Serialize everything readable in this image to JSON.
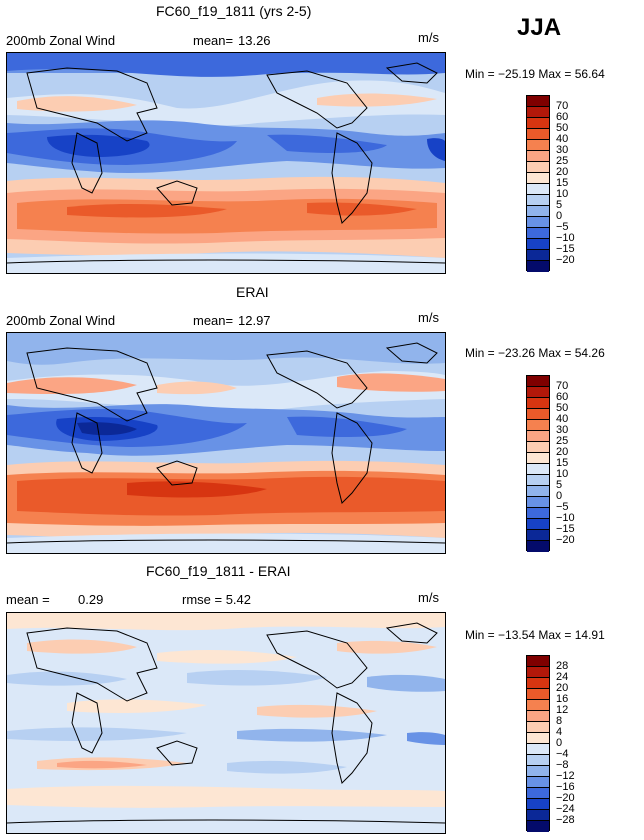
{
  "season": "JJA",
  "panels": [
    {
      "title": "FC60_f19_1811 (yrs 2-5)",
      "left_label": "200mb Zonal Wind",
      "stat_label": "mean=",
      "stat_value": "13.26",
      "units": "m/s",
      "minmax": "Min = −25.19 Max =  56.64",
      "colorbar_labels": [
        "70",
        "60",
        "50",
        "40",
        "30",
        "25",
        "20",
        "15",
        "10",
        "5",
        "0",
        "−5",
        "−10",
        "−15",
        "−20"
      ]
    },
    {
      "title": "ERAI",
      "left_label": "200mb Zonal Wind",
      "stat_label": "mean=",
      "stat_value": "12.97",
      "units": "m/s",
      "minmax": "Min = −23.26 Max =  54.26",
      "colorbar_labels": [
        "70",
        "60",
        "50",
        "40",
        "30",
        "25",
        "20",
        "15",
        "10",
        "5",
        "0",
        "−5",
        "−10",
        "−15",
        "−20"
      ]
    },
    {
      "title": "FC60_f19_1811 - ERAI",
      "left_label": "mean =",
      "stat_label": "0.29",
      "stat_value": "rmse =   5.42",
      "units": "m/s",
      "minmax": "Min = −13.54 Max =  14.91",
      "colorbar_labels": [
        "28",
        "24",
        "20",
        "16",
        "12",
        "8",
        "4",
        "0",
        "−4",
        "−8",
        "−12",
        "−16",
        "−20",
        "−24",
        "−28"
      ]
    }
  ],
  "colors": {
    "scale": [
      "#7f0000",
      "#b2180a",
      "#d73511",
      "#ea5a2a",
      "#f5814f",
      "#fba584",
      "#fccdb2",
      "#fde6d3",
      "#dbe8f8",
      "#b7d0f2",
      "#91b4ec",
      "#6892e6",
      "#3d69dc",
      "#1742c6",
      "#0b2897",
      "#040b6b"
    ],
    "land_outline": "#000000"
  }
}
